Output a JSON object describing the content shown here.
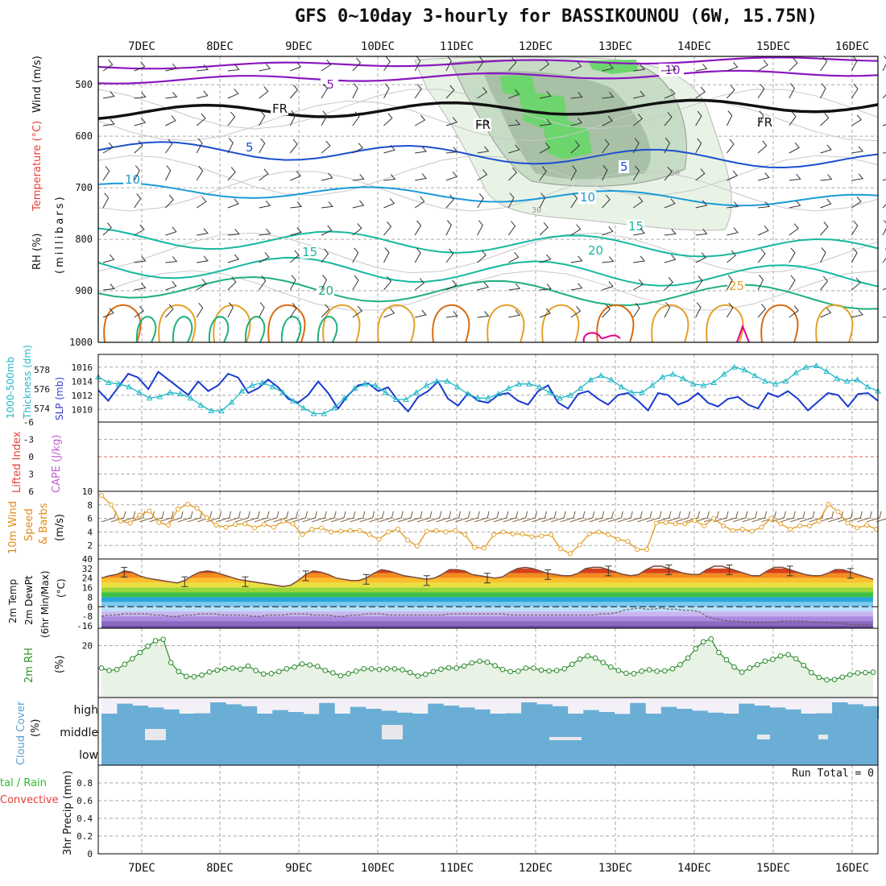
{
  "title": "GFS 0~10day 3-hourly for BASSIKOUNOU (6W, 15.75N)",
  "colors": {
    "wind_purple": "#8a17c0",
    "freezing": "#111111",
    "blue": "#1a4fd0",
    "lightblue": "#1a9ad8",
    "teal": "#16b8a0",
    "green": "#1fb07a",
    "orange": "#e3a028",
    "darkorange": "#d86a10",
    "magenta": "#e0008a",
    "rh_green": "#3ec84a",
    "slp_cyan": "#1fb8c8",
    "thick_blue": "#1a3ad0",
    "cloud_blue": "#6aaed6",
    "grid": "#aaaaaa"
  },
  "chart_data": [
    {
      "panel": "upper_air",
      "type": "contour",
      "ylabel_parts": [
        "RH (%)",
        "Temperature (°C)",
        "Wind (m/s)"
      ],
      "ylabel_unit": "(millibars)",
      "x_categories": [
        "7DEC",
        "8DEC",
        "9DEC",
        "10DEC",
        "11DEC",
        "12DEC",
        "13DEC",
        "14DEC",
        "15DEC",
        "16DEC"
      ],
      "y_ticks": [
        500,
        600,
        700,
        800,
        900,
        1000
      ],
      "contour_labels": [
        "-10",
        "-5",
        "FR",
        "FR",
        "FR",
        "5",
        "5",
        "10",
        "10",
        "15",
        "15",
        "20",
        "20",
        "25"
      ],
      "rh_labels": [
        "30",
        "50"
      ]
    },
    {
      "panel": "thickness_slp",
      "type": "line",
      "ylabel_left": "1000-500mb Thickness (dm)",
      "ylabel_right": "SLP (mb)",
      "thickness_ticks": [
        574,
        576,
        578
      ],
      "slp_ticks": [
        1010,
        1012,
        1014,
        1016
      ],
      "series": [
        {
          "name": "1000-500mb Thickness (dm)",
          "values": [
            575.9,
            574.8,
            576.2,
            577.6,
            577.2,
            576.0,
            577.8,
            577.0,
            576.2,
            575.4,
            576.8,
            575.8,
            576.4,
            577.6,
            577.2,
            575.6,
            576.1,
            577.0,
            576.2,
            575.0,
            574.6,
            575.4,
            576.8,
            575.6,
            574.0,
            575.4,
            576.4,
            576.6,
            575.8,
            576.2,
            574.8,
            573.7,
            575.2,
            575.8,
            576.8,
            575.0,
            574.3,
            575.6,
            574.8,
            574.6,
            575.4,
            575.6,
            574.8,
            574.4,
            575.8,
            576.4,
            574.6,
            574.0,
            575.5,
            575.8,
            575.0,
            574.4,
            575.4,
            575.6,
            574.8,
            573.8,
            575.6,
            575.4,
            574.4,
            574.8,
            575.6,
            574.6,
            574.2,
            575.0,
            575.2,
            574.4,
            574.0,
            575.6,
            575.2,
            575.8,
            575.0,
            573.8,
            574.7,
            575.6,
            575.4,
            574.2,
            575.5,
            575.6,
            574.8
          ]
        },
        {
          "name": "SLP (mb)",
          "values": [
            1014.6,
            1013.8,
            1013.6,
            1013.2,
            1012.4,
            1011.6,
            1011.8,
            1012.4,
            1012.2,
            1011.6,
            1010.6,
            1009.8,
            1009.8,
            1011.0,
            1012.6,
            1013.4,
            1013.8,
            1013.2,
            1012.4,
            1011.2,
            1010.2,
            1009.4,
            1009.4,
            1010.2,
            1011.6,
            1013.0,
            1013.6,
            1013.4,
            1012.4,
            1011.4,
            1011.4,
            1012.4,
            1013.4,
            1014.0,
            1014.0,
            1013.2,
            1012.2,
            1011.6,
            1011.6,
            1012.2,
            1013.0,
            1013.6,
            1013.6,
            1013.2,
            1012.4,
            1011.6,
            1012.0,
            1013.0,
            1014.2,
            1014.8,
            1014.2,
            1013.2,
            1012.4,
            1012.4,
            1013.4,
            1014.6,
            1015.0,
            1014.4,
            1013.6,
            1013.4,
            1013.8,
            1015.0,
            1016.0,
            1015.6,
            1014.8,
            1014.0,
            1013.6,
            1014.0,
            1015.2,
            1016.0,
            1016.2,
            1015.4,
            1014.4,
            1014.0,
            1014.2,
            1013.2,
            1012.6
          ]
        }
      ]
    },
    {
      "panel": "lifted_index_cape",
      "type": "line",
      "ylabel_left": "Lifted Index",
      "ylabel_right": "CAPE (J/kg)",
      "y_ticks": [
        "-6",
        "-3",
        "0",
        "3",
        "6"
      ],
      "ylim": [
        -6,
        6
      ]
    },
    {
      "panel": "wind10m",
      "type": "line",
      "ylabel": "10m Wind Speed & Barbs (m/s)",
      "y_ticks": [
        2,
        4,
        6,
        8,
        10
      ],
      "ylim": [
        0,
        10
      ],
      "series": [
        {
          "name": "10m Wind Speed",
          "values": [
            9.4,
            8.0,
            5.6,
            5.3,
            6.5,
            7.1,
            5.4,
            5.0,
            7.4,
            8.1,
            7.5,
            6.1,
            5.0,
            4.7,
            5.1,
            5.2,
            4.6,
            5.1,
            4.7,
            5.6,
            5.2,
            3.6,
            4.4,
            4.6,
            4.0,
            4.1,
            4.2,
            4.2,
            3.6,
            2.9,
            4.0,
            4.4,
            2.8,
            1.9,
            4.1,
            4.2,
            4.0,
            4.2,
            3.6,
            1.7,
            1.6,
            3.6,
            4.0,
            3.7,
            3.7,
            3.3,
            3.4,
            3.6,
            1.5,
            0.8,
            2.1,
            3.7,
            4.0,
            3.6,
            2.9,
            2.6,
            1.4,
            1.4,
            5.3,
            5.4,
            5.2,
            5.2,
            5.7,
            4.9,
            6.0,
            4.9,
            4.2,
            4.4,
            4.1,
            4.7,
            6.0,
            5.2,
            4.4,
            4.9,
            4.9,
            5.6,
            8.1,
            7.0,
            5.3,
            4.6,
            5.0,
            4.4
          ]
        }
      ]
    },
    {
      "panel": "temp2m",
      "type": "area",
      "ylabel": "2m Temp 2m DewPt (6hr Min/Max) (°C)",
      "y_ticks": [
        40,
        32,
        24,
        16,
        8,
        0,
        -8,
        -16
      ],
      "ylim": [
        -16,
        40
      ],
      "series": [
        {
          "name": "2m Temp",
          "values": [
            24,
            26,
            27,
            30,
            29,
            26,
            24,
            23,
            22,
            21,
            20,
            22,
            26,
            29,
            30,
            29,
            27,
            25,
            23,
            22,
            21,
            20,
            19,
            18,
            17,
            18,
            22,
            27,
            30,
            29,
            27,
            24,
            23,
            22,
            22,
            24,
            28,
            31,
            30,
            28,
            26,
            25,
            24,
            23,
            24,
            27,
            31,
            31,
            30,
            27,
            26,
            25,
            24,
            25,
            29,
            32,
            33,
            32,
            30,
            28,
            27,
            26,
            26,
            28,
            32,
            33,
            33,
            31,
            29,
            27,
            26,
            27,
            31,
            34,
            34,
            32,
            30,
            28,
            27,
            27,
            31,
            34,
            34,
            32,
            30,
            28,
            26,
            26,
            30,
            33,
            33,
            31,
            29,
            27,
            26,
            26,
            28,
            31,
            31,
            29,
            27,
            25,
            23
          ]
        },
        {
          "name": "2m DewPt",
          "values": [
            -8,
            -7,
            -7,
            -6,
            -6,
            -6,
            -6,
            -7,
            -7,
            -8,
            -8,
            -7,
            -7,
            -6,
            -6,
            -6,
            -7,
            -7,
            -7,
            -7,
            -8,
            -8,
            -7,
            -7,
            -7,
            -6,
            -6,
            -6,
            -7,
            -7,
            -7,
            -8,
            -8,
            -7,
            -7,
            -6,
            -6,
            -6,
            -7,
            -7,
            -7,
            -7,
            -7,
            -7,
            -7,
            -7,
            -6,
            -6,
            -6,
            -6,
            -6,
            -6,
            -6,
            -6,
            -7,
            -7,
            -7,
            -7,
            -7,
            -7,
            -7,
            -7,
            -7,
            -7,
            -7,
            -7,
            -6,
            -6,
            -5,
            -3,
            -2,
            -1,
            -2,
            -2,
            -1,
            -2,
            -2,
            -3,
            -3,
            -4,
            -8,
            -10,
            -11,
            -12,
            -12,
            -13,
            -13,
            -13,
            -13,
            -13,
            -12,
            -12,
            -12,
            -12,
            -13,
            -13,
            -13,
            -14,
            -14,
            -15,
            -15,
            -15,
            -15
          ]
        }
      ]
    },
    {
      "panel": "rh2m",
      "type": "area",
      "ylabel": "2m RH (%)",
      "y_ticks": [
        20
      ],
      "series": [
        {
          "name": "2m RH",
          "values": [
            13.5,
            12.8,
            13.1,
            14.6,
            16.2,
            18.0,
            19.8,
            21.4,
            21.8,
            15.1,
            12.5,
            11.1,
            11.0,
            11.5,
            12.4,
            12.9,
            13.3,
            13.5,
            13.2,
            14.1,
            12.8,
            11.8,
            11.9,
            12.5,
            13.3,
            13.8,
            14.7,
            14.4,
            14.0,
            12.8,
            12.1,
            11.3,
            11.9,
            12.6,
            13.3,
            13.3,
            13.1,
            13.3,
            13.3,
            13.0,
            12.2,
            11.2,
            11.7,
            12.5,
            13.2,
            13.6,
            13.5,
            14.1,
            15.0,
            15.5,
            15.2,
            14.2,
            13.1,
            12.5,
            12.6,
            13.5,
            13.5,
            12.9,
            12.7,
            12.8,
            13.3,
            14.6,
            16.1,
            17.0,
            16.4,
            15.1,
            13.8,
            12.8,
            12.0,
            11.9,
            12.6,
            13.0,
            12.6,
            12.7,
            13.3,
            14.5,
            16.4,
            19.1,
            21.1,
            21.9,
            18.0,
            15.9,
            13.8,
            12.3,
            13.5,
            14.5,
            15.5,
            16.0,
            17.0,
            17.4,
            16.2,
            14.3,
            12.2,
            10.8,
            10.1,
            10.2,
            10.9,
            11.6,
            12.1,
            12.2,
            12.3
          ]
        }
      ]
    },
    {
      "panel": "cloud_cover",
      "type": "bar",
      "ylabel": "Cloud Cover (%)",
      "y_categories": [
        "high",
        "middle",
        "low"
      ]
    },
    {
      "panel": "precip",
      "type": "bar",
      "ylabel_left": "Total / Rain Convective",
      "ylabel": "3hr Precip (mm)",
      "y_ticks": [
        0,
        0.2,
        0.4,
        0.6,
        0.8
      ],
      "ylim": [
        0,
        1.0
      ],
      "run_total": "Run Total = 0"
    }
  ],
  "text": {
    "y_rh": "RH (%)",
    "y_temp": "Temperature (°C)",
    "y_wind": "Wind (m/s)",
    "y_mb": "(millibars)",
    "y_thick1": "1000-500mb",
    "y_thick2": "Thickness (dm)",
    "y_slp": "SLP (mb)",
    "y_li": "Lifted Index",
    "y_cape": "CAPE (J/kg)",
    "y_w1": "10m Wind",
    "y_w2": "Speed",
    "y_w3": "& Barbs",
    "y_w4": "(m/s)",
    "y_t1": "2m Temp",
    "y_t2": "2m DewPt",
    "y_t3": "(6hr Min/Max)",
    "y_t4": "(°C)",
    "y_rh1": "2m RH",
    "y_rh2": "(%)",
    "y_cc1": "Cloud Cover",
    "y_cc2": "(%)",
    "y_p1": "tal / Rain",
    "y_p2": "Convective",
    "y_p3": "3hr Precip (mm)",
    "run_total": "Run Total = 0"
  }
}
